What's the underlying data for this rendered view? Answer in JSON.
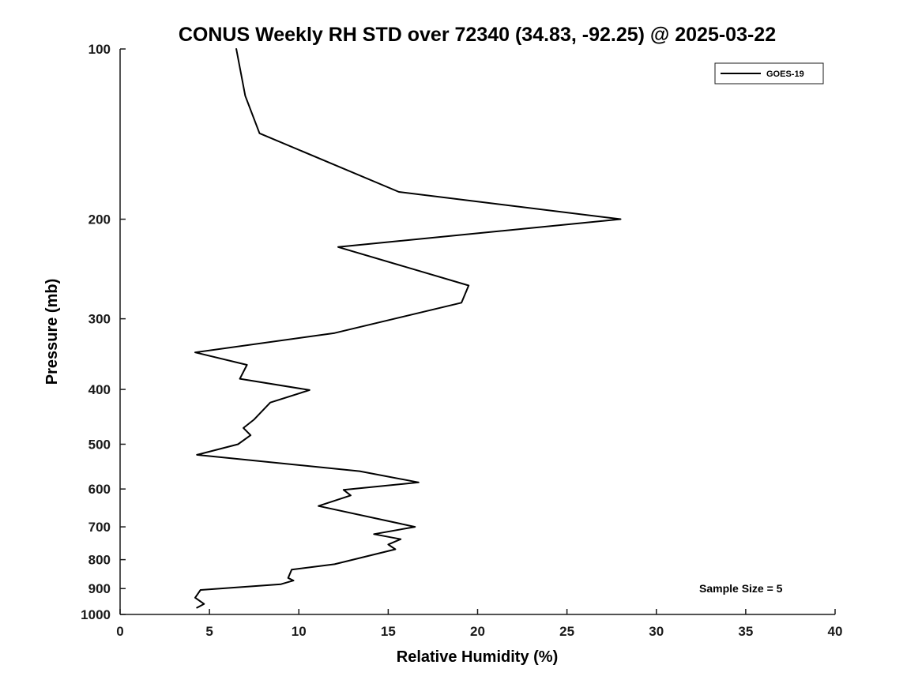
{
  "chart_data": {
    "type": "line",
    "title": "CONUS Weekly RH STD over 72340 (34.83, -92.25) @ 2025-03-22",
    "xlabel": "Relative Humidity (%)",
    "ylabel": "Pressure (mb)",
    "xlim": [
      0,
      40
    ],
    "x_ticks": [
      0,
      5,
      10,
      15,
      20,
      25,
      30,
      35,
      40
    ],
    "ylim": [
      100,
      1000
    ],
    "y_ticks": [
      100,
      200,
      300,
      400,
      500,
      600,
      700,
      800,
      900,
      1000
    ],
    "y_scale": "log",
    "y_axis_reversed": true,
    "grid": false,
    "annotation": "Sample Size = 5",
    "legend": {
      "position": "top-right",
      "entries": [
        {
          "label": "GOES-19",
          "color": "#000000"
        }
      ]
    },
    "series": [
      {
        "name": "GOES-19",
        "color": "#000000",
        "pressure_mb": [
          100,
          121,
          141,
          179,
          200,
          224,
          262,
          281,
          318,
          344,
          362,
          383,
          401,
          422,
          452,
          468,
          482,
          500,
          522,
          558,
          584,
          602,
          616,
          643,
          700,
          721,
          736,
          752,
          767,
          815,
          833,
          862,
          871,
          884,
          905,
          934,
          958,
          973
        ],
        "rh_std_pct": [
          6.5,
          7.0,
          7.8,
          15.6,
          28.0,
          12.2,
          19.5,
          19.1,
          12.0,
          4.2,
          7.1,
          6.7,
          10.6,
          8.4,
          7.5,
          6.9,
          7.3,
          6.6,
          4.3,
          13.4,
          16.7,
          12.5,
          12.9,
          11.1,
          16.5,
          14.2,
          15.7,
          15.0,
          15.4,
          12.0,
          9.6,
          9.4,
          9.7,
          9.0,
          4.5,
          4.2,
          4.7,
          4.3
        ]
      }
    ]
  }
}
